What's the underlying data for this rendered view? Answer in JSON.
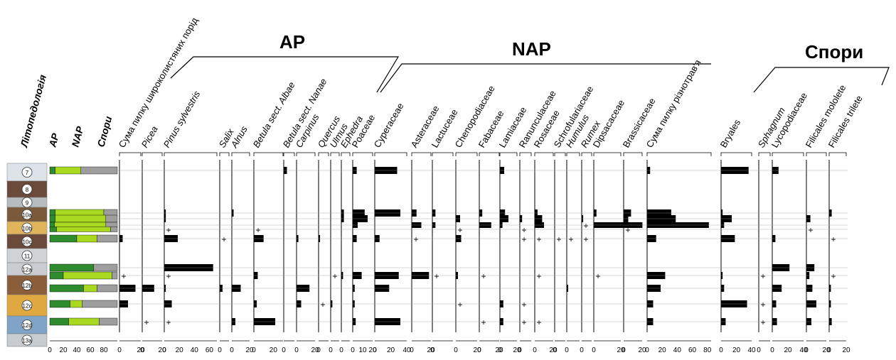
{
  "groups": [
    "AP",
    "NAP",
    "Спори"
  ],
  "left_headers": [
    "Літопедологія",
    "AP",
    "NAP",
    "Спори"
  ],
  "litho_units": [
    "7",
    "8",
    "9",
    "10a",
    "10b",
    "10c",
    "11",
    "12a",
    "12b",
    "12c",
    "12d",
    "13a"
  ],
  "sample_units": [
    "7",
    "10a",
    "10a",
    "10b",
    "10b",
    "10c",
    "12a",
    "12a",
    "12b",
    "12c",
    "12d"
  ],
  "colors": {
    "ap": "#2e8b2e",
    "nap": "#a8d820",
    "spores": "#9e9e9e",
    "bar": "#000000"
  },
  "chart_data": {
    "type": "bar",
    "orientation": "horizontal pollen diagram",
    "samples": 11,
    "summary": {
      "title": "",
      "xlim": [
        0,
        100
      ],
      "ticks": [
        "0",
        "20",
        "40",
        "60",
        "80"
      ],
      "series": [
        {
          "name": "AP",
          "values": [
            8,
            8,
            8,
            7,
            10,
            40,
            65,
            20,
            50,
            30,
            28
          ]
        },
        {
          "name": "NAP",
          "values": [
            38,
            72,
            75,
            76,
            80,
            30,
            0,
            72,
            20,
            18,
            45
          ]
        },
        {
          "name": "Спори",
          "values": [
            54,
            20,
            17,
            17,
            10,
            30,
            35,
            8,
            30,
            52,
            27
          ]
        }
      ]
    },
    "taxa": [
      {
        "name": "Сума пилку широколистяних порід",
        "italic": false,
        "max": 20,
        "ticks": [
          "0",
          "20"
        ],
        "values": [
          0,
          0,
          0,
          0,
          0,
          3,
          0,
          0,
          15,
          8,
          0
        ],
        "plus": [
          0,
          0,
          0,
          0,
          0,
          0,
          0,
          1,
          0,
          0,
          0
        ]
      },
      {
        "name": "Picea",
        "italic": true,
        "max": 20,
        "ticks": [
          "0",
          "20"
        ],
        "values": [
          0,
          0,
          0,
          0,
          0,
          0,
          0,
          0,
          12,
          0,
          0
        ],
        "plus": [
          0,
          0,
          0,
          0,
          0,
          0,
          0,
          0,
          0,
          0,
          1
        ]
      },
      {
        "name": "Pinus sylvestris",
        "italic": true,
        "max": 70,
        "ticks": [
          "0",
          "20",
          "40",
          "60"
        ],
        "values": [
          0,
          2,
          2,
          0,
          0,
          18,
          65,
          0,
          2,
          10,
          0
        ],
        "plus": [
          0,
          0,
          0,
          0,
          1,
          0,
          0,
          1,
          0,
          0,
          1
        ]
      },
      {
        "name": "Salix",
        "italic": true,
        "max": 20,
        "ticks": [
          "0"
        ],
        "values": [
          0,
          0,
          0,
          0,
          0,
          0,
          0,
          0,
          6,
          0,
          0
        ],
        "plus": [
          0,
          0,
          0,
          0,
          0,
          1,
          0,
          0,
          0,
          0,
          0
        ]
      },
      {
        "name": "Alnus",
        "italic": true,
        "max": 20,
        "ticks": [
          "0",
          "20"
        ],
        "values": [
          0,
          2,
          0,
          0,
          0,
          0,
          0,
          0,
          10,
          0,
          4
        ],
        "plus": [
          0,
          0,
          0,
          0,
          0,
          0,
          0,
          0,
          0,
          0,
          0
        ]
      },
      {
        "name": "Betula sect. Albae",
        "italic": true,
        "max": 30,
        "ticks": [
          "0",
          "20"
        ],
        "values": [
          0,
          0,
          0,
          0,
          0,
          10,
          0,
          4,
          0,
          3,
          22
        ],
        "plus": [
          0,
          0,
          0,
          0,
          1,
          0,
          0,
          0,
          0,
          0,
          0
        ]
      },
      {
        "name": "Betula sect. Nanae",
        "italic": true,
        "max": 20,
        "ticks": [
          "0"
        ],
        "values": [
          6,
          0,
          0,
          0,
          0,
          0,
          0,
          0,
          0,
          0,
          0
        ],
        "plus": [
          0,
          0,
          0,
          0,
          0,
          0,
          0,
          0,
          0,
          0,
          0
        ]
      },
      {
        "name": "Carpinus",
        "italic": true,
        "max": 20,
        "ticks": [
          "0",
          "20"
        ],
        "values": [
          0,
          0,
          0,
          0,
          0,
          2,
          0,
          0,
          14,
          5,
          0
        ],
        "plus": [
          0,
          0,
          0,
          0,
          0,
          0,
          0,
          0,
          0,
          0,
          0
        ]
      },
      {
        "name": "Quercus",
        "italic": true,
        "max": 20,
        "ticks": [
          "0"
        ],
        "values": [
          0,
          0,
          0,
          0,
          0,
          2,
          0,
          0,
          0,
          0,
          0
        ],
        "plus": [
          0,
          0,
          0,
          0,
          0,
          0,
          0,
          0,
          0,
          1,
          0
        ]
      },
      {
        "name": "Ulmus",
        "italic": true,
        "max": 20,
        "ticks": [
          "0"
        ],
        "values": [
          0,
          0,
          0,
          0,
          0,
          0,
          0,
          0,
          0,
          4,
          0
        ],
        "plus": [
          0,
          0,
          0,
          0,
          0,
          0,
          0,
          1,
          0,
          0,
          0
        ]
      },
      {
        "name": "Ephedra",
        "italic": true,
        "max": 20,
        "ticks": [
          "0"
        ],
        "values": [
          0,
          6,
          6,
          0,
          0,
          0,
          0,
          4,
          0,
          0,
          0
        ],
        "plus": [
          0,
          0,
          0,
          0,
          0,
          0,
          0,
          0,
          0,
          0,
          0
        ]
      },
      {
        "name": "Poaceae",
        "italic": false,
        "max": 20,
        "ticks": [
          "0",
          "10",
          "20"
        ],
        "values": [
          4,
          12,
          15,
          5,
          0,
          4,
          0,
          9,
          2,
          2,
          3
        ],
        "plus": [
          0,
          0,
          0,
          0,
          0,
          0,
          0,
          0,
          0,
          0,
          0
        ]
      },
      {
        "name": "Cyperaceae",
        "italic": false,
        "max": 40,
        "ticks": [
          "0",
          "20",
          "40"
        ],
        "values": [
          28,
          32,
          0,
          0,
          0,
          6,
          0,
          30,
          18,
          0,
          32
        ],
        "plus": [
          0,
          0,
          0,
          0,
          0,
          0,
          0,
          0,
          0,
          0,
          0
        ]
      },
      {
        "name": "Asteraceae",
        "italic": false,
        "max": 20,
        "ticks": [
          "0",
          "20"
        ],
        "values": [
          0,
          5,
          0,
          10,
          0,
          0,
          0,
          18,
          0,
          0,
          0
        ],
        "plus": [
          0,
          0,
          0,
          0,
          0,
          1,
          0,
          0,
          0,
          0,
          0
        ]
      },
      {
        "name": "Lactuceae",
        "italic": false,
        "max": 20,
        "ticks": [
          "0"
        ],
        "values": [
          0,
          3,
          0,
          3,
          0,
          0,
          0,
          0,
          0,
          0,
          0
        ],
        "plus": [
          0,
          0,
          0,
          0,
          0,
          0,
          0,
          1,
          0,
          0,
          0
        ]
      },
      {
        "name": "Chenopodiaceae",
        "italic": false,
        "max": 20,
        "ticks": [
          "0",
          "20"
        ],
        "values": [
          0,
          0,
          4,
          0,
          0,
          5,
          0,
          2,
          0,
          0,
          0
        ],
        "plus": [
          0,
          0,
          0,
          0,
          1,
          0,
          0,
          0,
          0,
          1,
          0
        ]
      },
      {
        "name": "Fabaceae",
        "italic": false,
        "max": 20,
        "ticks": [
          "0",
          "20"
        ],
        "values": [
          0,
          3,
          0,
          12,
          0,
          0,
          0,
          0,
          0,
          0,
          0
        ],
        "plus": [
          0,
          0,
          0,
          0,
          0,
          0,
          0,
          1,
          0,
          0,
          1
        ]
      },
      {
        "name": "Lamiaceae",
        "italic": false,
        "max": 20,
        "ticks": [
          "0",
          "20"
        ],
        "values": [
          5,
          6,
          10,
          3,
          0,
          0,
          0,
          0,
          0,
          4,
          4
        ],
        "plus": [
          0,
          0,
          0,
          0,
          0,
          0,
          0,
          0,
          0,
          0,
          0
        ]
      },
      {
        "name": "Ranunculaceae",
        "italic": false,
        "max": 20,
        "ticks": [
          "0"
        ],
        "values": [
          0,
          0,
          4,
          0,
          0,
          0,
          0,
          0,
          0,
          0,
          0
        ],
        "plus": [
          0,
          0,
          0,
          0,
          1,
          1,
          0,
          0,
          0,
          1,
          1
        ]
      },
      {
        "name": "Rosaceae",
        "italic": false,
        "max": 20,
        "ticks": [
          "0",
          "20"
        ],
        "values": [
          0,
          3,
          8,
          10,
          0,
          0,
          0,
          0,
          0,
          0,
          0
        ],
        "plus": [
          0,
          0,
          0,
          0,
          0,
          1,
          0,
          1,
          0,
          0,
          1
        ]
      },
      {
        "name": "Schrofulariaceae",
        "italic": false,
        "max": 20,
        "ticks": [
          "0"
        ],
        "values": [
          0,
          0,
          0,
          0,
          0,
          0,
          0,
          0,
          0,
          0,
          0
        ],
        "plus": [
          0,
          0,
          0,
          0,
          0,
          1,
          0,
          0,
          0,
          0,
          0
        ]
      },
      {
        "name": "Humulus",
        "italic": true,
        "max": 20,
        "ticks": [
          "0"
        ],
        "values": [
          0,
          0,
          0,
          0,
          0,
          0,
          0,
          0,
          2,
          0,
          0
        ],
        "plus": [
          0,
          0,
          0,
          0,
          0,
          1,
          0,
          0,
          0,
          0,
          0
        ]
      },
      {
        "name": "Rumex",
        "italic": true,
        "max": 20,
        "ticks": [
          "0"
        ],
        "values": [
          0,
          0,
          3,
          0,
          0,
          0,
          0,
          0,
          0,
          0,
          0
        ],
        "plus": [
          0,
          0,
          0,
          1,
          0,
          1,
          0,
          0,
          0,
          0,
          0
        ]
      },
      {
        "name": "Dipsacaceae",
        "italic": false,
        "max": 20,
        "ticks": [
          "0",
          "20"
        ],
        "values": [
          0,
          2,
          0,
          36,
          0,
          0,
          0,
          0,
          0,
          0,
          0
        ],
        "plus": [
          0,
          0,
          0,
          0,
          0,
          0,
          0,
          1,
          0,
          0,
          0
        ]
      },
      {
        "name": "Brassicaceae",
        "italic": false,
        "max": 20,
        "ticks": [
          "0",
          "20"
        ],
        "values": [
          0,
          8,
          5,
          0,
          0,
          0,
          0,
          0,
          0,
          0,
          0
        ],
        "plus": [
          0,
          0,
          0,
          0,
          1,
          0,
          0,
          0,
          0,
          0,
          0
        ]
      },
      {
        "name": "Сума пилку різнотрав'я",
        "italic": false,
        "max": 85,
        "ticks": [
          "0",
          "20",
          "40",
          "60",
          "80"
        ],
        "values": [
          4,
          32,
          38,
          82,
          0,
          12,
          0,
          24,
          18,
          8,
          8
        ],
        "plus": [
          0,
          0,
          0,
          0,
          0,
          0,
          0,
          0,
          0,
          0,
          0
        ]
      },
      {
        "name": "Bryales",
        "italic": false,
        "max": 40,
        "ticks": [
          "0",
          "20",
          "40"
        ],
        "values": [
          36,
          2,
          14,
          4,
          0,
          18,
          0,
          2,
          4,
          34,
          6
        ],
        "plus": [
          0,
          0,
          0,
          0,
          0,
          0,
          0,
          0,
          0,
          0,
          0
        ]
      },
      {
        "name": "Sphagnum",
        "italic": true,
        "max": 20,
        "ticks": [
          "0"
        ],
        "values": [
          0,
          0,
          0,
          0,
          0,
          0,
          0,
          0,
          0,
          0,
          0
        ],
        "plus": [
          0,
          0,
          0,
          0,
          0,
          0,
          0,
          1,
          0,
          1,
          1
        ]
      },
      {
        "name": "Lycopodiaceae",
        "italic": false,
        "max": 40,
        "ticks": [
          "0",
          "20",
          "40"
        ],
        "values": [
          8,
          0,
          0,
          0,
          0,
          4,
          22,
          0,
          12,
          5,
          6
        ],
        "plus": [
          0,
          0,
          0,
          0,
          0,
          0,
          0,
          0,
          0,
          0,
          0
        ]
      },
      {
        "name": "Filicales mololete",
        "italic": false,
        "max": 20,
        "ticks": [
          "0",
          "20"
        ],
        "values": [
          0,
          0,
          4,
          0,
          0,
          0,
          8,
          3,
          6,
          10,
          5
        ],
        "plus": [
          0,
          0,
          0,
          0,
          1,
          0,
          0,
          0,
          0,
          0,
          0
        ]
      },
      {
        "name": "Filicales trilete",
        "italic": false,
        "max": 20,
        "ticks": [
          "0",
          "20"
        ],
        "values": [
          0,
          3,
          0,
          0,
          0,
          0,
          0,
          0,
          2,
          2,
          3
        ],
        "plus": [
          0,
          0,
          0,
          0,
          0,
          1,
          0,
          1,
          0,
          0,
          0
        ]
      }
    ]
  }
}
